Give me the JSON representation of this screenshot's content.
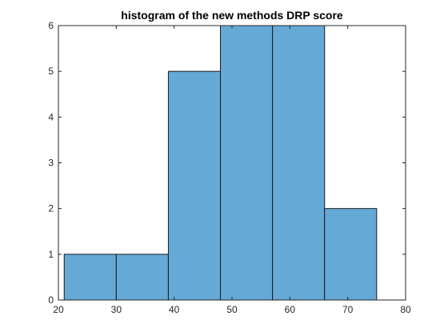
{
  "chart_data": {
    "type": "bar",
    "title": "histogram of the new methods DRP score",
    "xlabel": "",
    "ylabel": "",
    "bin_edges": [
      21,
      30,
      39,
      48,
      57,
      66,
      75
    ],
    "values": [
      1,
      1,
      5,
      6,
      6,
      2
    ],
    "xlim": [
      20,
      80
    ],
    "ylim": [
      0,
      6
    ],
    "xticks": [
      20,
      30,
      40,
      50,
      60,
      70,
      80
    ],
    "yticks": [
      0,
      1,
      2,
      3,
      4,
      5,
      6
    ],
    "grid": false,
    "bar_color": "#65a9d7",
    "edge_color": "#1a1a1a"
  }
}
